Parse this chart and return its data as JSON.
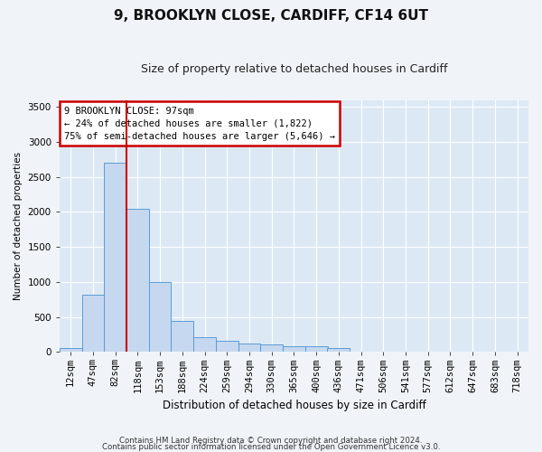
{
  "title1": "9, BROOKLYN CLOSE, CARDIFF, CF14 6UT",
  "title2": "Size of property relative to detached houses in Cardiff",
  "xlabel": "Distribution of detached houses by size in Cardiff",
  "ylabel": "Number of detached properties",
  "categories": [
    "12sqm",
    "47sqm",
    "82sqm",
    "118sqm",
    "153sqm",
    "188sqm",
    "224sqm",
    "259sqm",
    "294sqm",
    "330sqm",
    "365sqm",
    "400sqm",
    "436sqm",
    "471sqm",
    "506sqm",
    "541sqm",
    "577sqm",
    "612sqm",
    "647sqm",
    "683sqm",
    "718sqm"
  ],
  "values": [
    55,
    820,
    2700,
    2050,
    1000,
    440,
    210,
    155,
    120,
    110,
    75,
    75,
    55,
    0,
    0,
    0,
    0,
    0,
    0,
    0,
    0
  ],
  "bar_color": "#c5d8ef",
  "bar_edge_color": "#5b9bd5",
  "vline_color": "#cc0000",
  "vline_x_index": 2.5,
  "annotation_text": "9 BROOKLYN CLOSE: 97sqm\n← 24% of detached houses are smaller (1,822)\n75% of semi-detached houses are larger (5,646) →",
  "annotation_box_facecolor": "#ffffff",
  "annotation_box_edgecolor": "#cc0000",
  "ylim": [
    0,
    3600
  ],
  "yticks": [
    0,
    500,
    1000,
    1500,
    2000,
    2500,
    3000,
    3500
  ],
  "plot_bg_color": "#dce9f5",
  "fig_bg_color": "#f0f4f8",
  "grid_color": "#ffffff",
  "footer1": "Contains HM Land Registry data © Crown copyright and database right 2024.",
  "footer2": "Contains public sector information licensed under the Open Government Licence v3.0.",
  "title1_fontsize": 11,
  "title2_fontsize": 9
}
